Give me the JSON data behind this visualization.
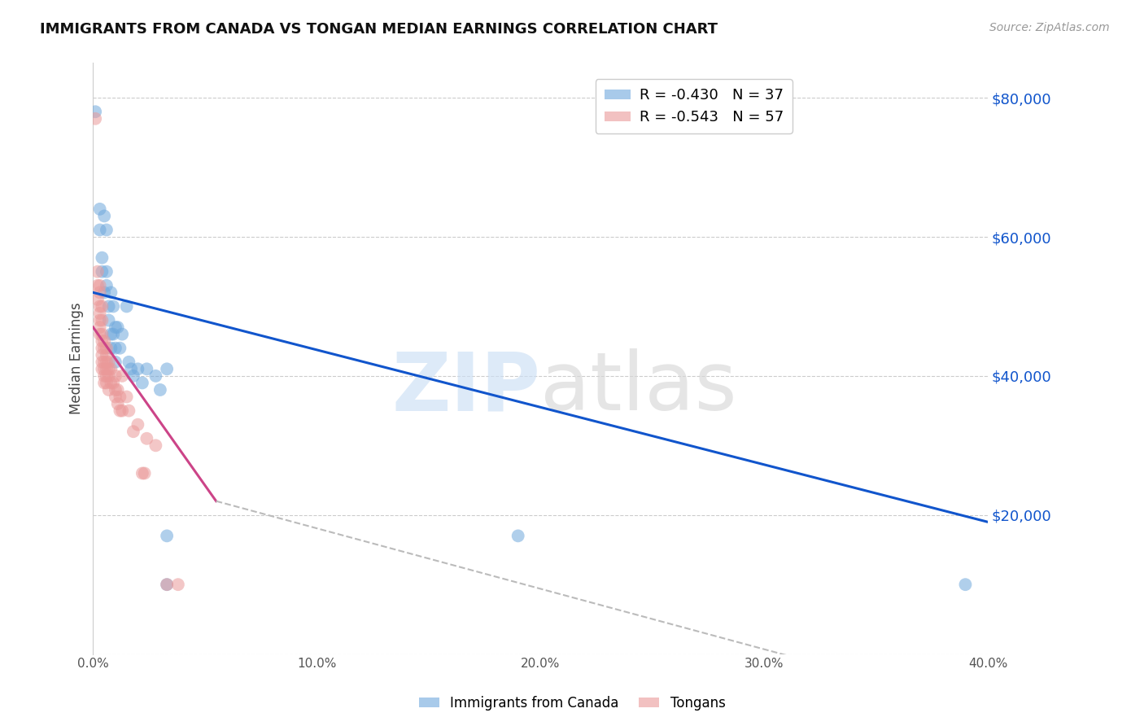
{
  "title": "IMMIGRANTS FROM CANADA VS TONGAN MEDIAN EARNINGS CORRELATION CHART",
  "source": "Source: ZipAtlas.com",
  "ylabel": "Median Earnings",
  "legend_canada": "R = -0.430   N = 37",
  "legend_tonga": "R = -0.543   N = 57",
  "legend_label_canada": "Immigrants from Canada",
  "legend_label_tonga": "Tongans",
  "canada_color": "#6fa8dc",
  "tonga_color": "#ea9999",
  "trendline_canada_color": "#1155cc",
  "trendline_tonga_color": "#cc4488",
  "trendline_tonga_ext_color": "#bbbbbb",
  "canada_trendline": [
    [
      0.0,
      52000
    ],
    [
      0.4,
      19000
    ]
  ],
  "tonga_trendline_solid": [
    [
      0.0,
      47000
    ],
    [
      0.055,
      22000
    ]
  ],
  "tonga_trendline_dashed": [
    [
      0.055,
      22000
    ],
    [
      0.4,
      -8000
    ]
  ],
  "watermark_zip": "ZIP",
  "watermark_atlas": "atlas",
  "canada_scatter": [
    [
      0.001,
      78000
    ],
    [
      0.003,
      64000
    ],
    [
      0.003,
      61000
    ],
    [
      0.004,
      57000
    ],
    [
      0.004,
      55000
    ],
    [
      0.005,
      52000
    ],
    [
      0.005,
      63000
    ],
    [
      0.006,
      61000
    ],
    [
      0.006,
      55000
    ],
    [
      0.006,
      53000
    ],
    [
      0.007,
      50000
    ],
    [
      0.007,
      48000
    ],
    [
      0.008,
      52000
    ],
    [
      0.008,
      46000
    ],
    [
      0.008,
      44000
    ],
    [
      0.009,
      50000
    ],
    [
      0.009,
      46000
    ],
    [
      0.01,
      47000
    ],
    [
      0.01,
      44000
    ],
    [
      0.01,
      42000
    ],
    [
      0.011,
      47000
    ],
    [
      0.012,
      44000
    ],
    [
      0.013,
      46000
    ],
    [
      0.015,
      50000
    ],
    [
      0.016,
      42000
    ],
    [
      0.017,
      41000
    ],
    [
      0.018,
      40000
    ],
    [
      0.02,
      41000
    ],
    [
      0.022,
      39000
    ],
    [
      0.024,
      41000
    ],
    [
      0.028,
      40000
    ],
    [
      0.03,
      38000
    ],
    [
      0.033,
      41000
    ],
    [
      0.033,
      17000
    ],
    [
      0.033,
      10000
    ],
    [
      0.19,
      17000
    ],
    [
      0.39,
      10000
    ]
  ],
  "tonga_scatter": [
    [
      0.001,
      77000
    ],
    [
      0.002,
      55000
    ],
    [
      0.002,
      53000
    ],
    [
      0.002,
      51000
    ],
    [
      0.003,
      53000
    ],
    [
      0.003,
      52000
    ],
    [
      0.003,
      50000
    ],
    [
      0.003,
      49000
    ],
    [
      0.003,
      48000
    ],
    [
      0.003,
      47000
    ],
    [
      0.003,
      46000
    ],
    [
      0.004,
      50000
    ],
    [
      0.004,
      48000
    ],
    [
      0.004,
      46000
    ],
    [
      0.004,
      45000
    ],
    [
      0.004,
      44000
    ],
    [
      0.004,
      43000
    ],
    [
      0.004,
      42000
    ],
    [
      0.004,
      41000
    ],
    [
      0.005,
      45000
    ],
    [
      0.005,
      44000
    ],
    [
      0.005,
      42000
    ],
    [
      0.005,
      41000
    ],
    [
      0.005,
      40000
    ],
    [
      0.005,
      39000
    ],
    [
      0.006,
      44000
    ],
    [
      0.006,
      43000
    ],
    [
      0.006,
      42000
    ],
    [
      0.006,
      41000
    ],
    [
      0.006,
      40000
    ],
    [
      0.006,
      39000
    ],
    [
      0.007,
      42000
    ],
    [
      0.007,
      41000
    ],
    [
      0.007,
      40000
    ],
    [
      0.007,
      38000
    ],
    [
      0.008,
      41000
    ],
    [
      0.008,
      39000
    ],
    [
      0.009,
      39000
    ],
    [
      0.01,
      40000
    ],
    [
      0.01,
      38000
    ],
    [
      0.01,
      37000
    ],
    [
      0.011,
      38000
    ],
    [
      0.011,
      36000
    ],
    [
      0.012,
      37000
    ],
    [
      0.012,
      35000
    ],
    [
      0.013,
      40000
    ],
    [
      0.013,
      35000
    ],
    [
      0.015,
      37000
    ],
    [
      0.016,
      35000
    ],
    [
      0.018,
      32000
    ],
    [
      0.02,
      33000
    ],
    [
      0.022,
      26000
    ],
    [
      0.023,
      26000
    ],
    [
      0.024,
      31000
    ],
    [
      0.028,
      30000
    ],
    [
      0.033,
      10000
    ],
    [
      0.038,
      10000
    ]
  ],
  "xlim": [
    0.0,
    0.4
  ],
  "ylim": [
    0,
    85000
  ],
  "yticks": [
    0,
    20000,
    40000,
    60000,
    80000
  ],
  "xticks": [
    0.0,
    0.1,
    0.2,
    0.3,
    0.4
  ],
  "xtick_labels": [
    "0.0%",
    "10.0%",
    "20.0%",
    "30.0%",
    "40.0%"
  ],
  "grid_color": "#cccccc",
  "background_color": "#ffffff"
}
